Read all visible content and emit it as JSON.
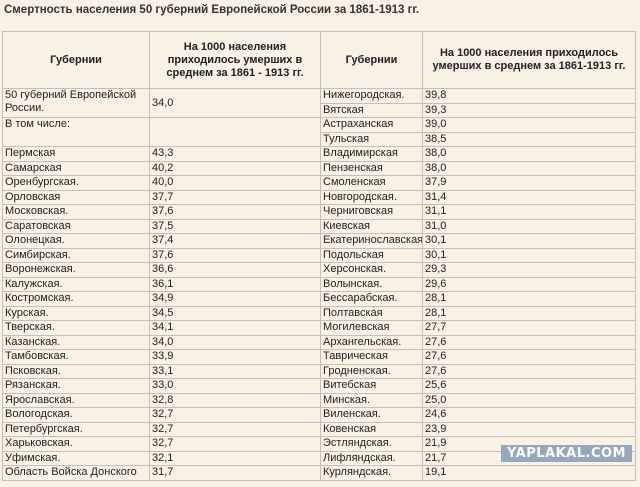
{
  "title": "Смертность населения 50 губерний Европейской России за 1861-1913 гг.",
  "headers": {
    "left_name": "Губернии",
    "left_value": "На 1000 населения приходилось умерших в среднем за 1861 - 1913 гг.",
    "right_name": "Губернии",
    "right_value": "На 1000 населения приходилось умерших в среднем за 1861-1913 гг."
  },
  "left": {
    "total_label": "50 губерний Европейской России.",
    "total_value": "34,0",
    "subheader": "В том числе:",
    "rows": [
      [
        "Пермская",
        "43,3"
      ],
      [
        "Самарская",
        "40,2"
      ],
      [
        "Оренбургская.",
        "40,0"
      ],
      [
        "Орловская",
        "37,7"
      ],
      [
        "Московская.",
        "37,6"
      ],
      [
        "Саратовская",
        "37,5"
      ],
      [
        "Олонецкая.",
        "37,4"
      ],
      [
        "Симбирская.",
        "37,6"
      ],
      [
        "Воронежская.",
        "36,6"
      ],
      [
        "Калужская.",
        "36,1"
      ],
      [
        "Костромская.",
        "34,9"
      ],
      [
        "Курская.",
        "34,5"
      ],
      [
        "Тверская.",
        "34,1"
      ],
      [
        "Казанская.",
        "34,0"
      ],
      [
        "Тамбовская.",
        "33,9"
      ],
      [
        "Псковская.",
        "33,1"
      ],
      [
        "Рязанская.",
        "33,0"
      ],
      [
        "Ярославская.",
        "32,8"
      ],
      [
        "Вологодская.",
        "32,7"
      ],
      [
        "Петербургская.",
        "32,7"
      ],
      [
        "Харьковская.",
        "32,7"
      ],
      [
        "Уфимская.",
        "32,1"
      ],
      [
        "Область Войска Донского",
        "31,7"
      ]
    ]
  },
  "right": {
    "rows": [
      [
        "Нижегородская.",
        "39,8"
      ],
      [
        "Вятская",
        "39,3"
      ],
      [
        "Астраханская",
        "39,0"
      ],
      [
        "Тульская",
        "38,5"
      ],
      [
        "Владимирская",
        "38,0"
      ],
      [
        "Пензенская",
        "38,0"
      ],
      [
        "Смоленская",
        "37,9"
      ],
      [
        "Новгородская.",
        "31,4"
      ],
      [
        "Черниговская",
        "31,1"
      ],
      [
        "Киевская",
        "31,0"
      ],
      [
        "Екатеринославская.",
        "30,1"
      ],
      [
        "Подольская",
        "30,1"
      ],
      [
        "Херсонская.",
        "29,3"
      ],
      [
        "Волынская.",
        "29,6"
      ],
      [
        "Бессарабская.",
        "28,1"
      ],
      [
        "Полтавская",
        "28,1"
      ],
      [
        "Могилевская",
        "27,7"
      ],
      [
        "Архангельская.",
        "27,6"
      ],
      [
        "Таврическая",
        "27,6"
      ],
      [
        "Гродненская.",
        "27,6"
      ],
      [
        "Витебская",
        "25,6"
      ],
      [
        "Минская.",
        "25,0"
      ],
      [
        "Виленская.",
        "24,6"
      ],
      [
        "Ковенская",
        "23,9"
      ],
      [
        "Эстляндская.",
        "21,9"
      ],
      [
        "Лифляндская.",
        "21,7"
      ],
      [
        "Курляндская.",
        "19,1"
      ]
    ]
  },
  "watermark": "YAPLAKAL.COM"
}
